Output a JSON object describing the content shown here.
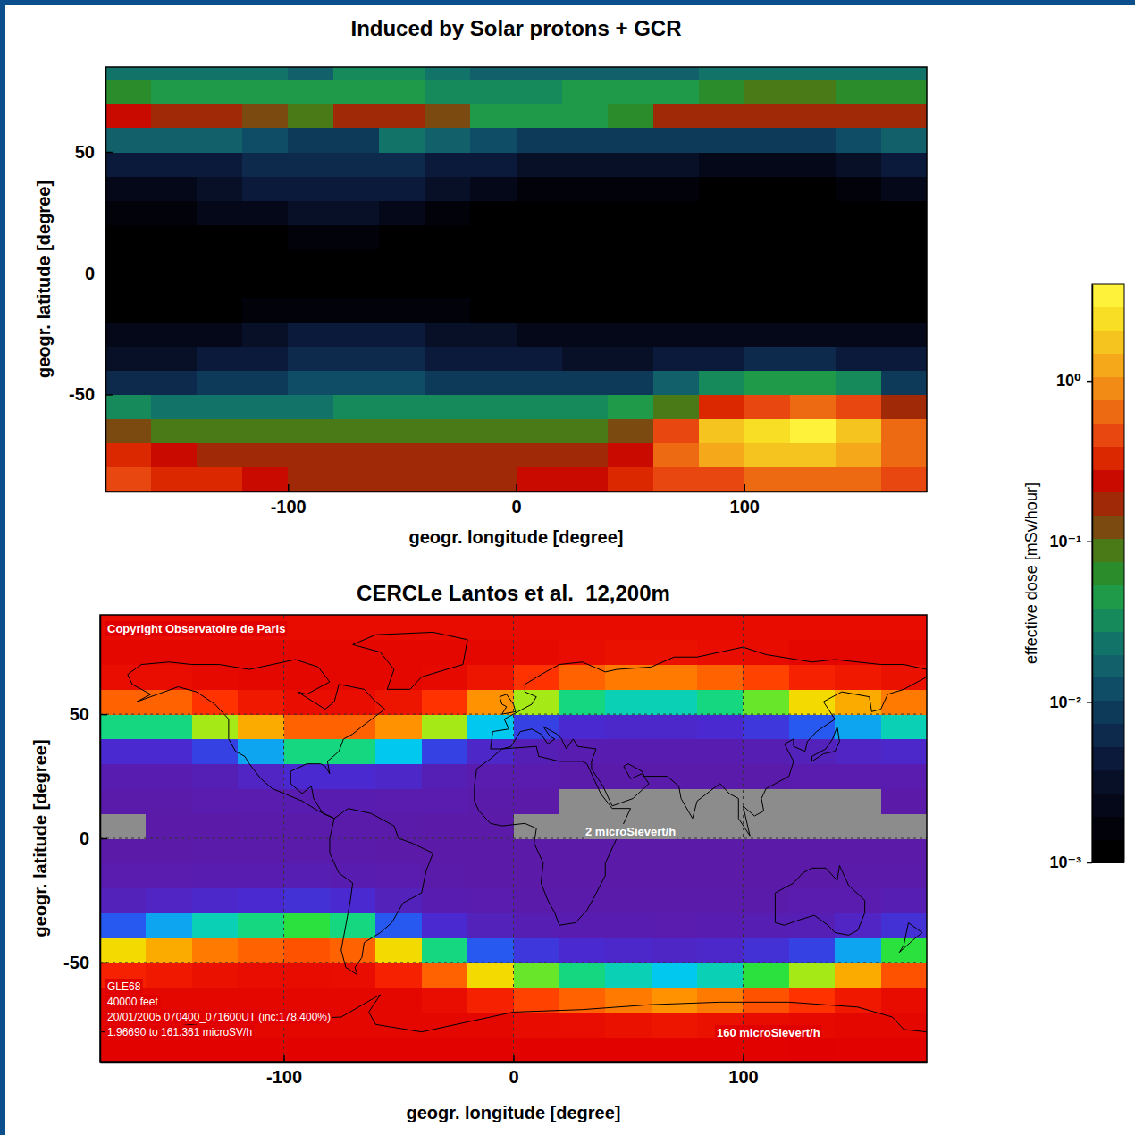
{
  "chart_data": [
    {
      "type": "heatmap",
      "title": "Induced by Solar protons + GCR",
      "x_label": "geogr. longitude [degree]",
      "y_label": "geogr. latitude [degree]",
      "xlim": [
        -180,
        180
      ],
      "ylim": [
        -90,
        85
      ],
      "xticks": [
        -100,
        0,
        100
      ],
      "yticks": [
        -50,
        0,
        50
      ],
      "grid": false,
      "x": [
        -170,
        -150,
        -130,
        -110,
        -90,
        -70,
        -50,
        -30,
        -10,
        10,
        30,
        50,
        70,
        90,
        110,
        130,
        150,
        170
      ],
      "y": [
        -85,
        -75,
        -65,
        -55,
        -45,
        -35,
        -25,
        -15,
        -5,
        5,
        15,
        25,
        35,
        45,
        55,
        65,
        75,
        85
      ],
      "values": [
        [
          0.4,
          0.35,
          0.3,
          0.25,
          0.2,
          0.2,
          0.2,
          0.2,
          0.2,
          0.22,
          0.25,
          0.3,
          0.4,
          0.5,
          0.6,
          0.6,
          0.55,
          0.5
        ],
        [
          0.3,
          0.25,
          0.2,
          0.18,
          0.18,
          0.18,
          0.18,
          0.18,
          0.18,
          0.18,
          0.2,
          0.25,
          0.6,
          1.2,
          1.8,
          2,
          1.4,
          0.7
        ],
        [
          0.12,
          0.1,
          0.08,
          0.08,
          0.08,
          0.1,
          0.1,
          0.1,
          0.1,
          0.1,
          0.1,
          0.12,
          0.4,
          1.5,
          2.5,
          3,
          2,
          0.6
        ],
        [
          0.03,
          0.025,
          0.02,
          0.02,
          0.025,
          0.03,
          0.03,
          0.03,
          0.03,
          0.03,
          0.03,
          0.04,
          0.08,
          0.3,
          0.5,
          0.6,
          0.4,
          0.15
        ],
        [
          0.006,
          0.007,
          0.008,
          0.01,
          0.012,
          0.012,
          0.012,
          0.01,
          0.01,
          0.01,
          0.008,
          0.01,
          0.015,
          0.03,
          0.04,
          0.05,
          0.03,
          0.01
        ],
        [
          0.003,
          0.003,
          0.004,
          0.005,
          0.006,
          0.006,
          0.006,
          0.005,
          0.005,
          0.004,
          0.003,
          0.003,
          0.004,
          0.005,
          0.006,
          0.006,
          0.005,
          0.004
        ],
        [
          0.002,
          0.002,
          0.002,
          0.003,
          0.004,
          0.004,
          0.004,
          0.003,
          0.003,
          0.002,
          0.002,
          0.002,
          0.002,
          0.002,
          0.002,
          0.002,
          0.002,
          0.002
        ],
        [
          0.001,
          0.001,
          0.001,
          0.0015,
          0.0015,
          0.0015,
          0.0015,
          0.0015,
          0.001,
          0.001,
          0.001,
          0.001,
          0.001,
          0.001,
          0.001,
          0.001,
          0.001,
          0.001
        ],
        [
          0.001,
          0.001,
          0.001,
          0.001,
          0.001,
          0.001,
          0.001,
          0.001,
          0.001,
          0.001,
          0.001,
          0.001,
          0.001,
          0.001,
          0.001,
          0.001,
          0.001,
          0.001
        ],
        [
          0.001,
          0.001,
          0.001,
          0.001,
          0.001,
          0.001,
          0.001,
          0.001,
          0.001,
          0.001,
          0.001,
          0.001,
          0.001,
          0.001,
          0.001,
          0.001,
          0.001,
          0.001
        ],
        [
          0.001,
          0.001,
          0.001,
          0.001,
          0.0015,
          0.0015,
          0.001,
          0.001,
          0.001,
          0.001,
          0.001,
          0.001,
          0.001,
          0.001,
          0.001,
          0.001,
          0.001,
          0.001
        ],
        [
          0.0015,
          0.0015,
          0.002,
          0.002,
          0.003,
          0.003,
          0.002,
          0.0015,
          0.0012,
          0.001,
          0.001,
          0.001,
          0.001,
          0.001,
          0.001,
          0.001,
          0.001,
          0.0012
        ],
        [
          0.002,
          0.002,
          0.003,
          0.004,
          0.005,
          0.005,
          0.004,
          0.003,
          0.002,
          0.0015,
          0.0015,
          0.0015,
          0.0015,
          0.0012,
          0.0012,
          0.0012,
          0.0015,
          0.002
        ],
        [
          0.004,
          0.004,
          0.005,
          0.006,
          0.006,
          0.006,
          0.006,
          0.005,
          0.004,
          0.003,
          0.003,
          0.003,
          0.003,
          0.002,
          0.002,
          0.002,
          0.003,
          0.004
        ],
        [
          0.015,
          0.015,
          0.015,
          0.012,
          0.008,
          0.01,
          0.02,
          0.015,
          0.012,
          0.01,
          0.01,
          0.01,
          0.008,
          0.008,
          0.008,
          0.01,
          0.012,
          0.015
        ],
        [
          0.25,
          0.2,
          0.15,
          0.12,
          0.08,
          0.15,
          0.2,
          0.12,
          0.05,
          0.04,
          0.05,
          0.06,
          0.15,
          0.2,
          0.2,
          0.2,
          0.15,
          0.15
        ],
        [
          0.06,
          0.05,
          0.04,
          0.05,
          0.04,
          0.05,
          0.04,
          0.03,
          0.03,
          0.03,
          0.04,
          0.04,
          0.05,
          0.06,
          0.08,
          0.08,
          0.06,
          0.06
        ],
        [
          0.02,
          0.02,
          0.02,
          0.02,
          0.015,
          0.03,
          0.03,
          0.02,
          0.015,
          0.015,
          0.015,
          0.015,
          0.015,
          0.02,
          0.02,
          0.02,
          0.02,
          0.02
        ]
      ],
      "colorbar": {
        "label": "effective dose [mSv/hour]",
        "range": [
          0.001,
          4
        ],
        "log": true,
        "ticks": [
          {
            "value": 0.001,
            "label": "10⁻³"
          },
          {
            "value": 0.01,
            "label": "10⁻²"
          },
          {
            "value": 0.1,
            "label": "10⁻¹"
          },
          {
            "value": 1,
            "label": "10⁰"
          }
        ]
      }
    },
    {
      "type": "heatmap",
      "title": "CERCLe Lantos et al.  12,200m",
      "x_label": "geogr. longitude [degree]",
      "y_label": "geogr. latitude [degree]",
      "xlim": [
        -180,
        180
      ],
      "ylim": [
        -90,
        90
      ],
      "xticks": [
        -100,
        0,
        100
      ],
      "yticks": [
        -50,
        0,
        50
      ],
      "grid": true,
      "x": [
        -170,
        -150,
        -130,
        -110,
        -90,
        -70,
        -50,
        -30,
        -10,
        10,
        30,
        50,
        70,
        90,
        110,
        130,
        150,
        170
      ],
      "y": [
        -85,
        -75,
        -65,
        -55,
        -45,
        -35,
        -25,
        -15,
        -5,
        5,
        15,
        25,
        35,
        45,
        55,
        65,
        75,
        85
      ],
      "values": [
        [
          160,
          160,
          160,
          160,
          160,
          160,
          160,
          160,
          160,
          160,
          160,
          160,
          160,
          160,
          160,
          161,
          160,
          160
        ],
        [
          158,
          158,
          158,
          158,
          158,
          158,
          158,
          158,
          158,
          156,
          155,
          153,
          151,
          153,
          156,
          157,
          158,
          158
        ],
        [
          158,
          158,
          158,
          158,
          158,
          158,
          158,
          155,
          145,
          133,
          125,
          119,
          113,
          119,
          129,
          137,
          149,
          156
        ],
        [
          145,
          149,
          153,
          155,
          156,
          155,
          145,
          125,
          95,
          74,
          60,
          55,
          50,
          55,
          67,
          81,
          107,
          129
        ],
        [
          95,
          107,
          119,
          125,
          129,
          125,
          95,
          60,
          35,
          24,
          18,
          16,
          14,
          16,
          21,
          28,
          45,
          67
        ],
        [
          35,
          45,
          55,
          60,
          67,
          60,
          35,
          18,
          10,
          7,
          6,
          6,
          5,
          6,
          7,
          8,
          13,
          21
        ],
        [
          10,
          13,
          16,
          18,
          21,
          18,
          10,
          6,
          5,
          4,
          4,
          4,
          4,
          4,
          4,
          5,
          5,
          7
        ],
        [
          5,
          5,
          6,
          6,
          7,
          6,
          5,
          4,
          3,
          3,
          3,
          3,
          3,
          3,
          3,
          3,
          4,
          4
        ],
        [
          3,
          3,
          4,
          4,
          4,
          4,
          3,
          3,
          3,
          3,
          3,
          3,
          3,
          3,
          3,
          3,
          3,
          3
        ],
        [
          2,
          3,
          3,
          4,
          4,
          4,
          4,
          3,
          3,
          2,
          2,
          2,
          2,
          2,
          2,
          2,
          2,
          2
        ],
        [
          4,
          4,
          5,
          5,
          6,
          6,
          5,
          5,
          4,
          3,
          2,
          2,
          2,
          2,
          2,
          2,
          2,
          3
        ],
        [
          6,
          6,
          8,
          13,
          18,
          18,
          15,
          8,
          5,
          5,
          4,
          4,
          4,
          4,
          4,
          5,
          5,
          5
        ],
        [
          18,
          18,
          28,
          45,
          60,
          60,
          50,
          28,
          15,
          8,
          6,
          6,
          6,
          6,
          7,
          10,
          13,
          16
        ],
        [
          60,
          60,
          81,
          107,
          125,
          125,
          113,
          81,
          50,
          28,
          18,
          16,
          16,
          18,
          24,
          35,
          45,
          55
        ],
        [
          125,
          125,
          137,
          149,
          155,
          155,
          151,
          137,
          113,
          81,
          60,
          55,
          55,
          60,
          74,
          95,
          107,
          119
        ],
        [
          155,
          155,
          157,
          158,
          158,
          158,
          158,
          157,
          151,
          137,
          125,
          119,
          119,
          125,
          133,
          145,
          149,
          153
        ],
        [
          158,
          158,
          158,
          158,
          158,
          158,
          158,
          158,
          158,
          157,
          155,
          153,
          153,
          155,
          156,
          158,
          158,
          158
        ],
        [
          156,
          156,
          156,
          156,
          156,
          156,
          156,
          156,
          156,
          156,
          156,
          156,
          156,
          156,
          156,
          156,
          156,
          156
        ]
      ],
      "color_range": [
        1.9669,
        161.361
      ],
      "annotations": [
        "Copyright Observatoire de Paris",
        "2 microSievert/h",
        "160 microSievert/h",
        "GLE68",
        "40000 feet",
        "20/01/2005 070400_071600UT (inc:178.400%)",
        "1.96690 to 161.361 microSV/h"
      ]
    }
  ]
}
